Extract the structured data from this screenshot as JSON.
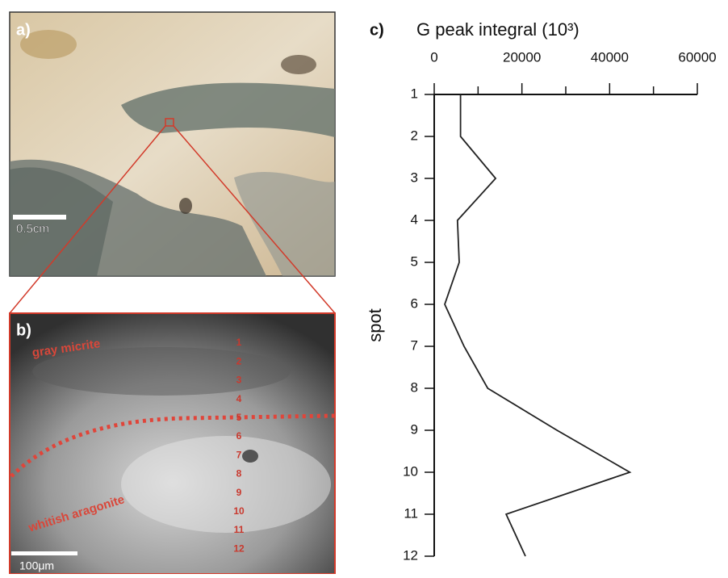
{
  "panels": {
    "a": {
      "label": "a)",
      "scale_bar": "0.5cm"
    },
    "b": {
      "label": "b)",
      "scale_bar": "100μm",
      "annotations": [
        "gray micrite",
        "whitish aragonite"
      ],
      "spot_labels": [
        "1",
        "2",
        "3",
        "4",
        "5",
        "6",
        "7",
        "8",
        "9",
        "10",
        "11",
        "12"
      ]
    }
  },
  "chart_data": {
    "type": "line",
    "orientation": "horizontal",
    "panel_label": "c)",
    "title": "G peak integral (10³)",
    "ylabel": "spot",
    "y": [
      1,
      2,
      3,
      4,
      5,
      6,
      7,
      8,
      9,
      10,
      11,
      12
    ],
    "series": [
      {
        "color": "#222222",
        "values": [
          6000,
          6000,
          14000,
          5300,
          5700,
          2400,
          6800,
          12200,
          28000,
          44600,
          16400,
          20800
        ]
      }
    ],
    "xlim": [
      0,
      60000
    ],
    "xticks": [
      0,
      20000,
      40000,
      60000
    ],
    "xminor": [
      10000,
      30000,
      50000
    ],
    "ylim": [
      1,
      12
    ],
    "yticks": [
      1,
      2,
      3,
      4,
      5,
      6,
      7,
      8,
      9,
      10,
      11,
      12
    ]
  }
}
